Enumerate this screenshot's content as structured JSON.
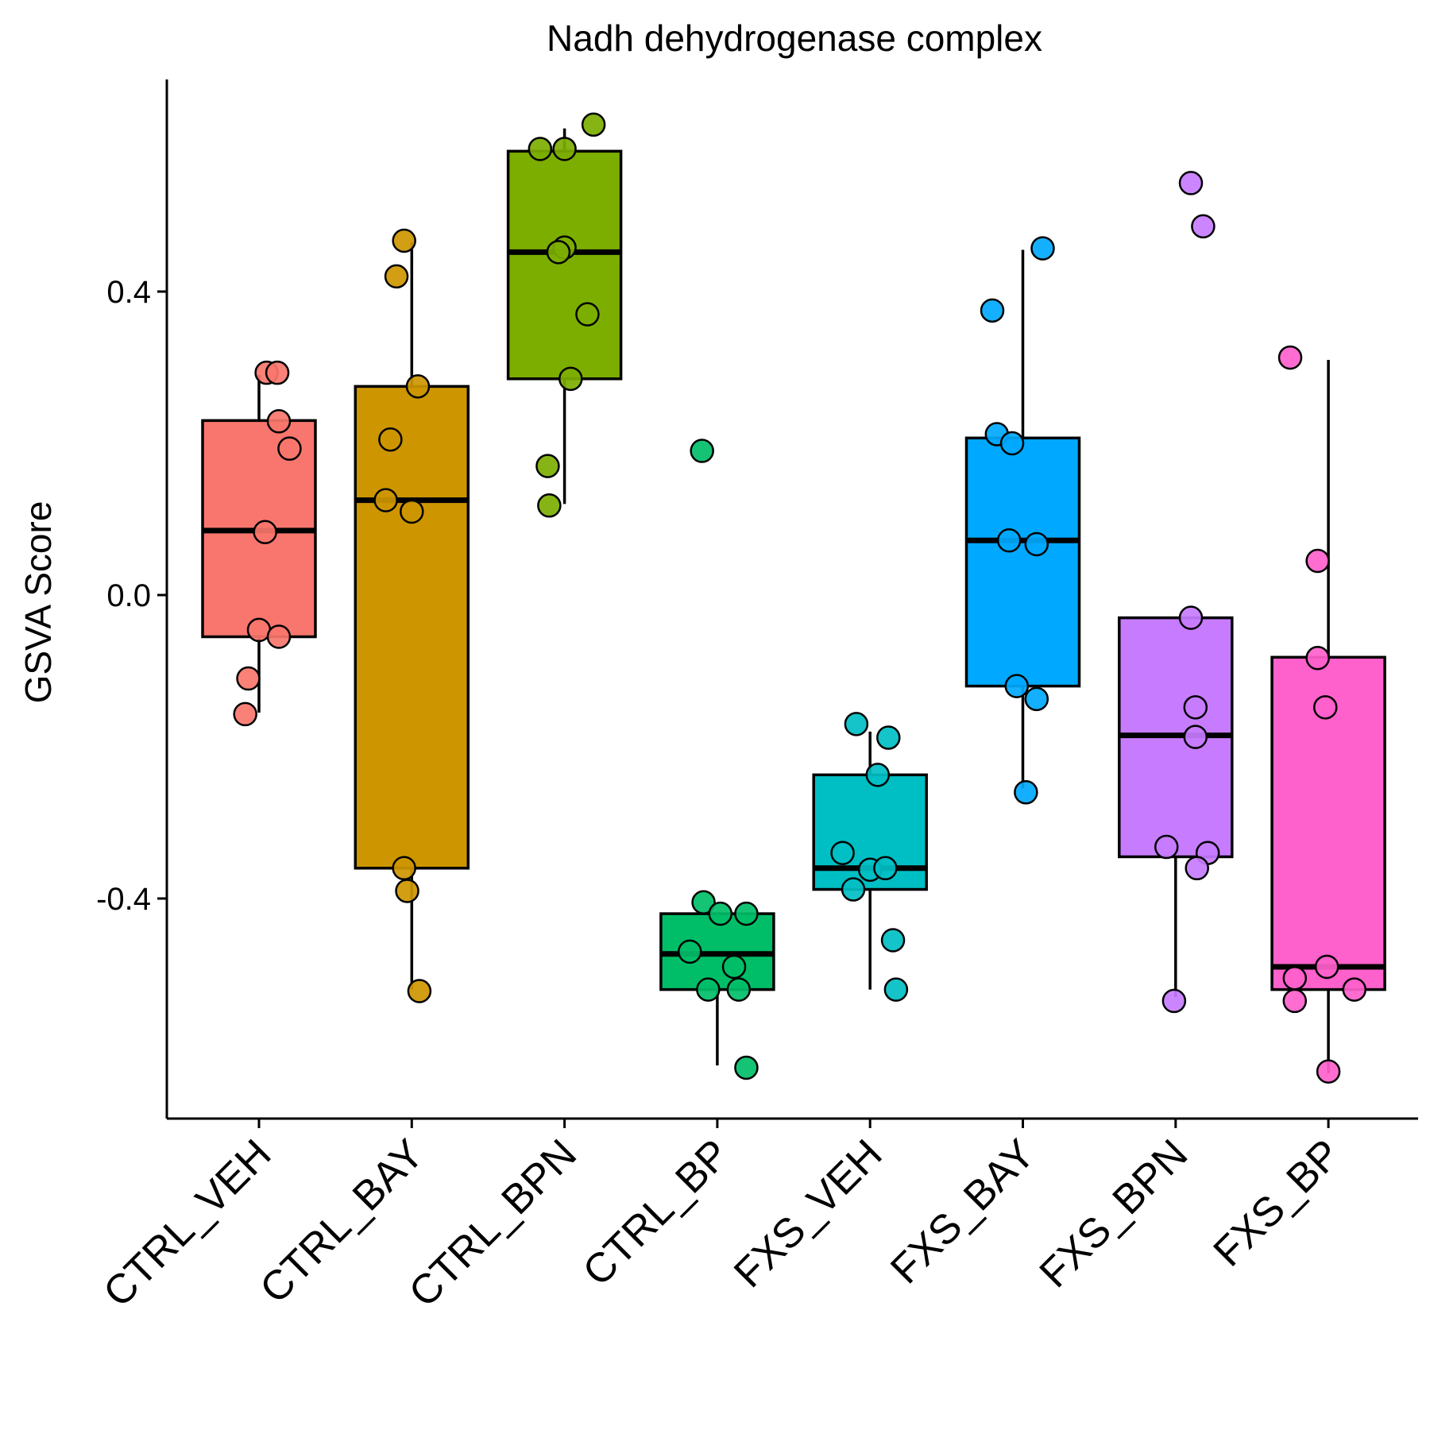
{
  "chart_data": {
    "type": "box",
    "title": "Nadh dehydrogenase complex",
    "xlabel": "",
    "ylabel": "GSVA Score",
    "ylim": [
      -0.69,
      0.68
    ],
    "yticks": [
      {
        "value": 0.4,
        "label": "0.4"
      },
      {
        "value": 0.0,
        "label": "0.0"
      },
      {
        "value": -0.4,
        "label": "-0.4"
      }
    ],
    "grid": false,
    "legend": "none",
    "categories": [
      "CTRL_VEH",
      "CTRL_BAY",
      "CTRL_BPN",
      "CTRL_BP",
      "FXS_VEH",
      "FXS_BAY",
      "FXS_BPN",
      "FXS_BP"
    ],
    "groups": [
      {
        "name": "CTRL_VEH",
        "color": "#F8766D",
        "box": {
          "q1": -0.055,
          "median": 0.085,
          "q3": 0.23,
          "whisker_low": -0.155,
          "whisker_high": 0.29
        },
        "points": [
          {
            "x": 0.05,
            "y": 0.293
          },
          {
            "x": 0.12,
            "y": 0.293
          },
          {
            "x": 0.13,
            "y": 0.229
          },
          {
            "x": 0.2,
            "y": 0.193
          },
          {
            "x": 0.04,
            "y": 0.083
          },
          {
            "x": 0.0,
            "y": -0.046
          },
          {
            "x": 0.13,
            "y": -0.055
          },
          {
            "x": -0.07,
            "y": -0.11
          },
          {
            "x": -0.09,
            "y": -0.157
          }
        ]
      },
      {
        "name": "CTRL_BAY",
        "color": "#CD9600",
        "box": {
          "q1": -0.36,
          "median": 0.125,
          "q3": 0.275,
          "whisker_low": -0.52,
          "whisker_high": 0.465
        },
        "points": [
          {
            "x": -0.05,
            "y": 0.467
          },
          {
            "x": -0.1,
            "y": 0.42
          },
          {
            "x": 0.04,
            "y": 0.275
          },
          {
            "x": -0.14,
            "y": 0.205
          },
          {
            "x": -0.17,
            "y": 0.125
          },
          {
            "x": 0.0,
            "y": 0.11
          },
          {
            "x": -0.05,
            "y": -0.36
          },
          {
            "x": -0.03,
            "y": -0.39
          },
          {
            "x": 0.05,
            "y": -0.522
          }
        ]
      },
      {
        "name": "CTRL_BPN",
        "color": "#7CAE00",
        "box": {
          "q1": 0.285,
          "median": 0.452,
          "q3": 0.585,
          "whisker_low": 0.12,
          "whisker_high": 0.615
        },
        "points": [
          {
            "x": 0.19,
            "y": 0.62
          },
          {
            "x": -0.16,
            "y": 0.588
          },
          {
            "x": 0.0,
            "y": 0.588
          },
          {
            "x": 0.0,
            "y": 0.458
          },
          {
            "x": -0.04,
            "y": 0.452
          },
          {
            "x": 0.15,
            "y": 0.37
          },
          {
            "x": 0.04,
            "y": 0.285
          },
          {
            "x": -0.11,
            "y": 0.17
          },
          {
            "x": -0.1,
            "y": 0.118
          }
        ]
      },
      {
        "name": "CTRL_BP",
        "color": "#00BE67",
        "box": {
          "q1": -0.52,
          "median": -0.473,
          "q3": -0.42,
          "whisker_low": -0.62,
          "whisker_high": -0.42
        },
        "outliers": [
          0.19
        ],
        "points": [
          {
            "x": -0.1,
            "y": 0.19
          },
          {
            "x": -0.09,
            "y": -0.405
          },
          {
            "x": 0.02,
            "y": -0.42
          },
          {
            "x": 0.19,
            "y": -0.42
          },
          {
            "x": -0.18,
            "y": -0.47
          },
          {
            "x": 0.11,
            "y": -0.49
          },
          {
            "x": -0.06,
            "y": -0.52
          },
          {
            "x": 0.14,
            "y": -0.52
          },
          {
            "x": 0.19,
            "y": -0.623
          }
        ]
      },
      {
        "name": "FXS_VEH",
        "color": "#00BFC4",
        "box": {
          "q1": -0.388,
          "median": -0.36,
          "q3": -0.237,
          "whisker_low": -0.52,
          "whisker_high": -0.18
        },
        "points": [
          {
            "x": -0.09,
            "y": -0.17
          },
          {
            "x": 0.12,
            "y": -0.188
          },
          {
            "x": 0.05,
            "y": -0.237
          },
          {
            "x": -0.18,
            "y": -0.34
          },
          {
            "x": 0.0,
            "y": -0.362
          },
          {
            "x": 0.1,
            "y": -0.36
          },
          {
            "x": -0.11,
            "y": -0.388
          },
          {
            "x": 0.15,
            "y": -0.455
          },
          {
            "x": 0.17,
            "y": -0.52
          }
        ]
      },
      {
        "name": "FXS_BAY",
        "color": "#00A9FF",
        "box": {
          "q1": -0.12,
          "median": 0.072,
          "q3": 0.207,
          "whisker_low": -0.255,
          "whisker_high": 0.455
        },
        "points": [
          {
            "x": 0.13,
            "y": 0.457
          },
          {
            "x": -0.2,
            "y": 0.375
          },
          {
            "x": -0.17,
            "y": 0.212
          },
          {
            "x": -0.07,
            "y": 0.2
          },
          {
            "x": -0.09,
            "y": 0.072
          },
          {
            "x": 0.09,
            "y": 0.067
          },
          {
            "x": -0.04,
            "y": -0.12
          },
          {
            "x": 0.09,
            "y": -0.137
          },
          {
            "x": 0.02,
            "y": -0.26
          }
        ]
      },
      {
        "name": "FXS_BPN",
        "color": "#C77CFF",
        "box": {
          "q1": -0.345,
          "median": -0.185,
          "q3": -0.03,
          "whisker_low": -0.53,
          "whisker_high": -0.03
        },
        "outliers": [
          0.54,
          0.485
        ],
        "points": [
          {
            "x": 0.1,
            "y": 0.543
          },
          {
            "x": 0.18,
            "y": 0.486
          },
          {
            "x": 0.1,
            "y": -0.03
          },
          {
            "x": 0.13,
            "y": -0.148
          },
          {
            "x": 0.13,
            "y": -0.187
          },
          {
            "x": -0.06,
            "y": -0.332
          },
          {
            "x": 0.21,
            "y": -0.34
          },
          {
            "x": 0.14,
            "y": -0.36
          },
          {
            "x": -0.01,
            "y": -0.535
          }
        ]
      },
      {
        "name": "FXS_BP",
        "color": "#FF61CC",
        "box": {
          "q1": -0.52,
          "median": -0.49,
          "q3": -0.082,
          "whisker_low": -0.63,
          "whisker_high": 0.31
        },
        "points": [
          {
            "x": -0.25,
            "y": 0.313
          },
          {
            "x": -0.07,
            "y": 0.045
          },
          {
            "x": -0.07,
            "y": -0.083
          },
          {
            "x": -0.02,
            "y": -0.148
          },
          {
            "x": -0.01,
            "y": -0.49
          },
          {
            "x": -0.22,
            "y": -0.505
          },
          {
            "x": 0.17,
            "y": -0.52
          },
          {
            "x": -0.22,
            "y": -0.535
          },
          {
            "x": 0.0,
            "y": -0.628
          }
        ]
      }
    ]
  }
}
